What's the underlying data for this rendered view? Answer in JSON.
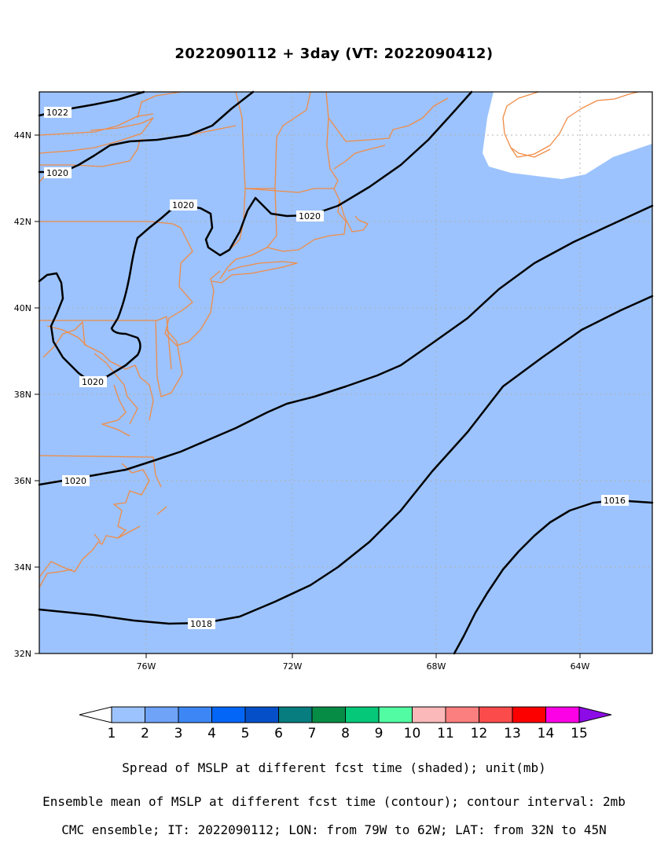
{
  "title": "2022090112 + 3day (VT: 2022090412)",
  "map": {
    "region": {
      "lon_min": -79,
      "lon_max": -62,
      "lat_min": 32,
      "lat_max": 45
    },
    "background_color": "#9cc3fd",
    "no_spread_color": "#ffffff",
    "border_color": "#f08c46",
    "lat_ticks": [
      "32N",
      "34N",
      "36N",
      "38N",
      "40N",
      "42N",
      "44N"
    ],
    "lon_ticks": [
      "76W",
      "72W",
      "68W",
      "64W"
    ]
  },
  "contours": {
    "variable": "Ensemble mean MSLP",
    "unit": "mb",
    "interval": 2,
    "labels": [
      "1022",
      "1020",
      "1020",
      "1020",
      "1020",
      "1020",
      "1018",
      "1016"
    ]
  },
  "colorbar": {
    "values": [
      "1",
      "2",
      "3",
      "4",
      "5",
      "6",
      "7",
      "8",
      "9",
      "10",
      "11",
      "12",
      "13",
      "14",
      "15"
    ],
    "colors": [
      "#9cc3fd",
      "#6ea3f8",
      "#3c87f5",
      "#0466f6",
      "#0550c9",
      "#077d7f",
      "#078c46",
      "#05c878",
      "#52fca2",
      "#fcb9b9",
      "#fc7f7f",
      "#fc4b4b",
      "#fc0000",
      "#fc00e6",
      "#8c0be6"
    ],
    "under_color": "#ffffff"
  },
  "captions": {
    "line1": "Spread of MSLP at different fcst time (shaded); unit(mb)",
    "line2": "Ensemble mean of MSLP at different fcst time (contour); contour interval: 2mb",
    "line3": "CMC ensemble; IT: 2022090112; LON: from 79W to 62W; LAT: from 32N to 45N"
  }
}
